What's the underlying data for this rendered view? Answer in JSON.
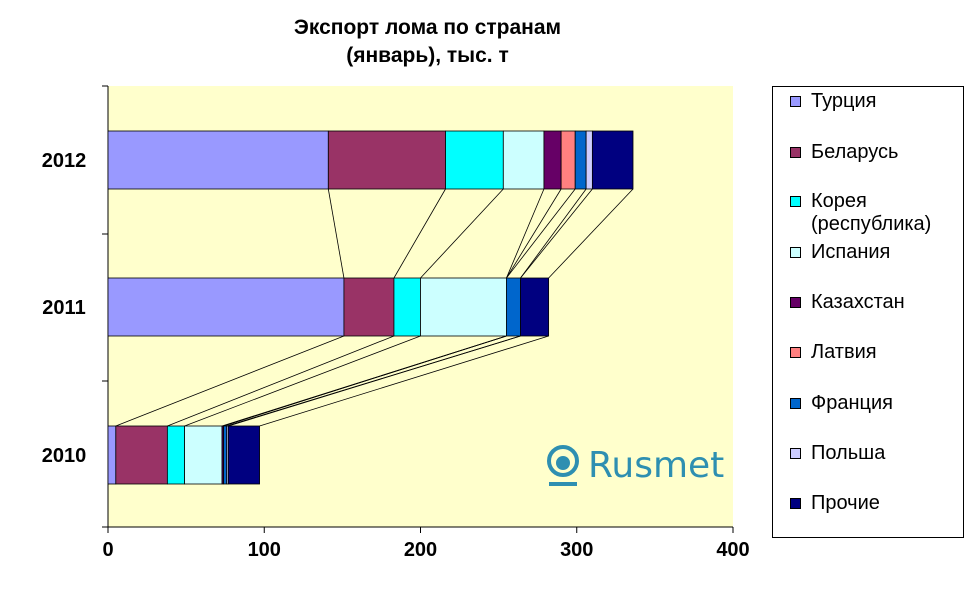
{
  "chart_data": {
    "type": "bar",
    "orientation": "horizontal",
    "stacked": true,
    "title": "Экспорт лома по странам",
    "subtitle": "(январь), тыс. т",
    "categories": [
      "2012",
      "2011",
      "2010"
    ],
    "xlim": [
      0,
      400
    ],
    "xticks": [
      "0",
      "100",
      "200",
      "300",
      "400"
    ],
    "legend_position": "right",
    "series": [
      {
        "name": "Турция",
        "color": "#9999ff",
        "values": [
          141,
          151,
          5
        ]
      },
      {
        "name": "Беларусь",
        "color": "#993366",
        "values": [
          75,
          32,
          33
        ]
      },
      {
        "name": "Корея\n(республика)",
        "color": "#00ffff",
        "values": [
          37,
          17,
          11
        ]
      },
      {
        "name": "Испания",
        "color": "#ccffff",
        "values": [
          26,
          55,
          24
        ]
      },
      {
        "name": "Казахстан",
        "color": "#660066",
        "values": [
          11,
          0,
          1
        ]
      },
      {
        "name": "Латвия",
        "color": "#ff8080",
        "values": [
          9,
          0,
          0
        ]
      },
      {
        "name": "Франция",
        "color": "#0066cc",
        "values": [
          7,
          9,
          2
        ]
      },
      {
        "name": "Польша",
        "color": "#ccccff",
        "values": [
          4,
          0,
          1
        ]
      },
      {
        "name": "Прочие",
        "color": "#000080",
        "values": [
          26,
          18,
          20
        ]
      }
    ],
    "plot_background": "#ffffcc"
  },
  "logo": {
    "text": "Rusmet"
  }
}
